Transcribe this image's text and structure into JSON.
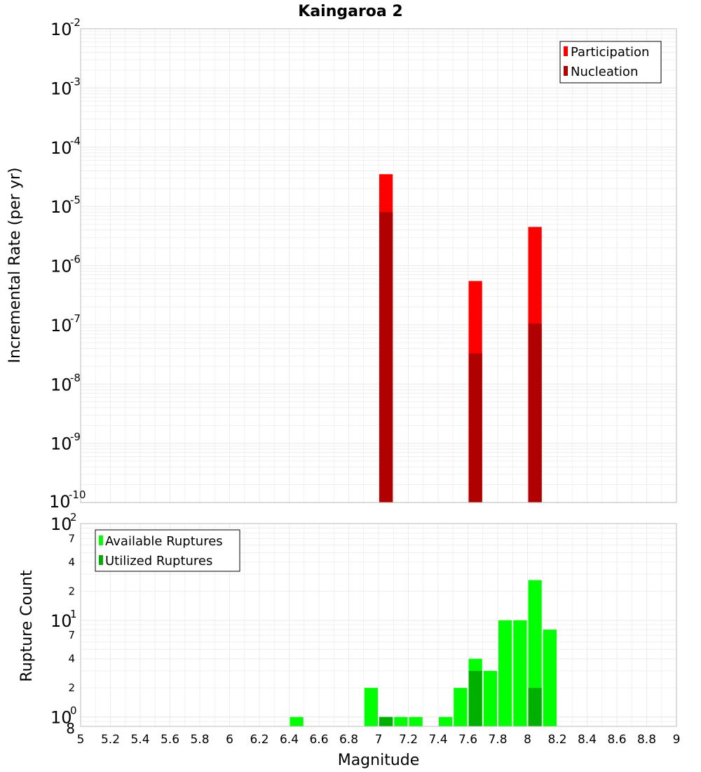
{
  "chart_data": [
    {
      "type": "bar",
      "title": "Kaingaroa 2",
      "xlabel": "",
      "ylabel": "Incremental Rate (per yr)",
      "xlim": [
        5,
        9
      ],
      "ylim": [
        1e-10,
        0.01
      ],
      "yscale": "log",
      "grid": true,
      "legend_position": "top-right",
      "bin_width": 0.1,
      "y_ticks": [
        {
          "base": "10",
          "exp": "-2",
          "value": 0.01
        },
        {
          "base": "10",
          "exp": "-3",
          "value": 0.001
        },
        {
          "base": "10",
          "exp": "-4",
          "value": 0.0001
        },
        {
          "base": "10",
          "exp": "-5",
          "value": 1e-05
        },
        {
          "base": "10",
          "exp": "-6",
          "value": 1e-06
        },
        {
          "base": "10",
          "exp": "-7",
          "value": 1e-07
        },
        {
          "base": "10",
          "exp": "-8",
          "value": 1e-08
        },
        {
          "base": "10",
          "exp": "-9",
          "value": 1e-09
        },
        {
          "base": "10",
          "exp": "-10",
          "value": 1e-10
        }
      ],
      "series": [
        {
          "name": "Participation",
          "color": "#ff0000",
          "x": [
            7.05,
            7.65,
            8.05
          ],
          "values": [
            3.5e-05,
            5.5e-07,
            4.5e-06
          ]
        },
        {
          "name": "Nucleation",
          "color": "#b00000",
          "x": [
            7.05,
            7.65,
            8.05
          ],
          "values": [
            8e-06,
            3.3e-08,
            1.05e-07
          ]
        }
      ]
    },
    {
      "type": "bar",
      "title": "",
      "xlabel": "Magnitude",
      "ylabel": "Rupture Count",
      "xlim": [
        5,
        9
      ],
      "ylim": [
        0.8,
        100
      ],
      "yscale": "log",
      "grid": true,
      "legend_position": "top-left",
      "bin_width": 0.1,
      "x_ticks": [
        "5",
        "5.2",
        "5.4",
        "5.6",
        "5.8",
        "6",
        "6.2",
        "6.4",
        "6.6",
        "6.8",
        "7",
        "7.2",
        "7.4",
        "7.6",
        "7.8",
        "8",
        "8.2",
        "8.4",
        "8.6",
        "8.8",
        "9"
      ],
      "y_major_ticks": [
        {
          "base": "10",
          "exp": "2",
          "value": 100
        },
        {
          "base": "10",
          "exp": "1",
          "value": 10
        },
        {
          "base": "10",
          "exp": "0",
          "value": 1
        }
      ],
      "y_minor_ticks": [
        {
          "label": "7",
          "value": 70
        },
        {
          "label": "4",
          "value": 40
        },
        {
          "label": "2",
          "value": 20
        },
        {
          "label": "7",
          "value": 7
        },
        {
          "label": "4",
          "value": 4
        },
        {
          "label": "2",
          "value": 2
        },
        {
          "label": "8",
          "value": 0.8
        }
      ],
      "series": [
        {
          "name": "Available Ruptures",
          "color": "#00ff00",
          "x": [
            6.45,
            6.95,
            7.05,
            7.15,
            7.25,
            7.45,
            7.55,
            7.65,
            7.75,
            7.85,
            7.95,
            8.05,
            8.15
          ],
          "values": [
            1,
            2,
            1,
            1,
            1,
            1,
            2,
            4,
            3,
            10,
            10,
            26,
            8
          ]
        },
        {
          "name": "Utilized Ruptures",
          "color": "#00b000",
          "x": [
            7.05,
            7.65,
            8.05
          ],
          "values": [
            1,
            3,
            2
          ]
        }
      ]
    }
  ]
}
